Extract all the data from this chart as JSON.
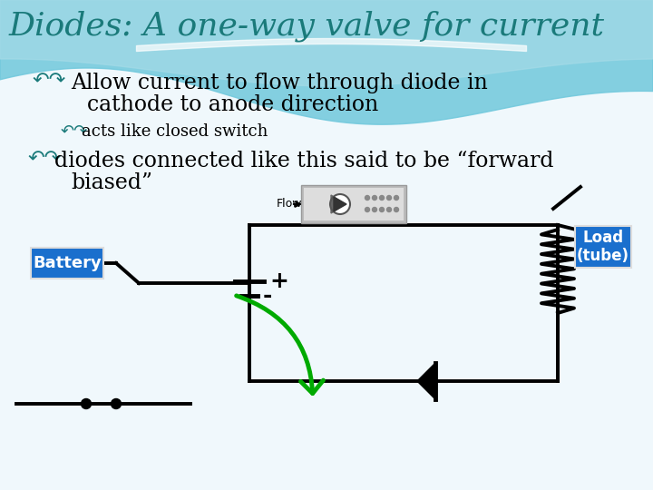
{
  "title": "Diodes: A one-way valve for current",
  "title_color": "#1a7a7a",
  "title_fontsize": 26,
  "bullet1_sym": "↶↷",
  "bullet1_line1": "Allow current to flow through diode in",
  "bullet1_line2": "cathode to anode direction",
  "bullet2_sym": "↶↷",
  "bullet2": "acts like closed switch",
  "bullet3_sym": "↶↷",
  "bullet3_line1": "diodes connected like this said to be “forward",
  "bullet3_line2": "biased”",
  "bullet_color": "#1a7a7a",
  "text_color": "#000000",
  "bullet1_fontsize": 17,
  "bullet2_fontsize": 13,
  "bullet3_fontsize": 17,
  "battery_label": "Battery",
  "load_label": "Load\n(tube)",
  "flow_label": "Flow",
  "box_color": "#1a6fcd",
  "box_text_color": "white",
  "circuit_color": "black",
  "arrow_color": "#00aa00",
  "bg_color": "#e8f4f8",
  "wave_color1": "#70c8dc",
  "wave_color2": "#a8dce8"
}
